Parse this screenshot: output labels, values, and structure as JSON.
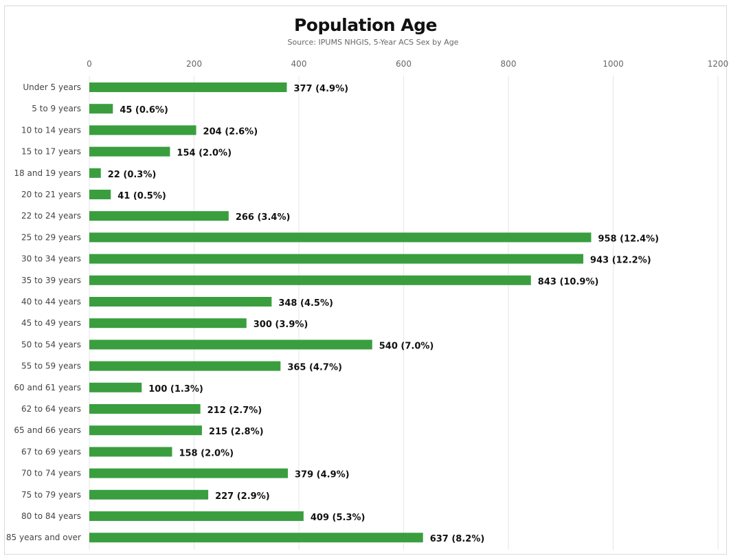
{
  "chart_data": {
    "type": "bar",
    "orientation": "horizontal",
    "title": "Population Age",
    "subtitle": "Source: IPUMS NHGIS, 5-Year ACS Sex by Age",
    "xlabel": "",
    "ylabel": "",
    "xlim": [
      0,
      1200
    ],
    "x_ticks": [
      0,
      200,
      400,
      600,
      800,
      1000,
      1200
    ],
    "grid": true,
    "bar_color": "#3a9e3f",
    "categories": [
      "Under 5 years",
      "5 to 9 years",
      "10 to 14 years",
      "15 to 17 years",
      "18 and 19 years",
      "20 to 21 years",
      "22 to 24 years",
      "25 to 29 years",
      "30 to 34 years",
      "35 to 39 years",
      "40 to 44 years",
      "45 to 49 years",
      "50 to 54 years",
      "55 to 59 years",
      "60 and 61 years",
      "62 to 64 years",
      "65 and 66 years",
      "67 to 69 years",
      "70 to 74 years",
      "75 to 79 years",
      "80 to 84 years",
      "85 years and over"
    ],
    "values": [
      377,
      45,
      204,
      154,
      22,
      41,
      266,
      958,
      943,
      843,
      348,
      300,
      540,
      365,
      100,
      212,
      215,
      158,
      379,
      227,
      409,
      637
    ],
    "data_labels": [
      "377 (4.9%)",
      "45 (0.6%)",
      "204 (2.6%)",
      "154 (2.0%)",
      "22 (0.3%)",
      "41 (0.5%)",
      "266 (3.4%)",
      "958 (12.4%)",
      "943 (12.2%)",
      "843 (10.9%)",
      "348 (4.5%)",
      "300 (3.9%)",
      "540 (7.0%)",
      "365 (4.7%)",
      "100 (1.3%)",
      "212 (2.7%)",
      "215 (2.8%)",
      "158 (2.0%)",
      "379 (4.9%)",
      "227 (2.9%)",
      "409 (5.3%)",
      "637 (8.2%)"
    ]
  }
}
